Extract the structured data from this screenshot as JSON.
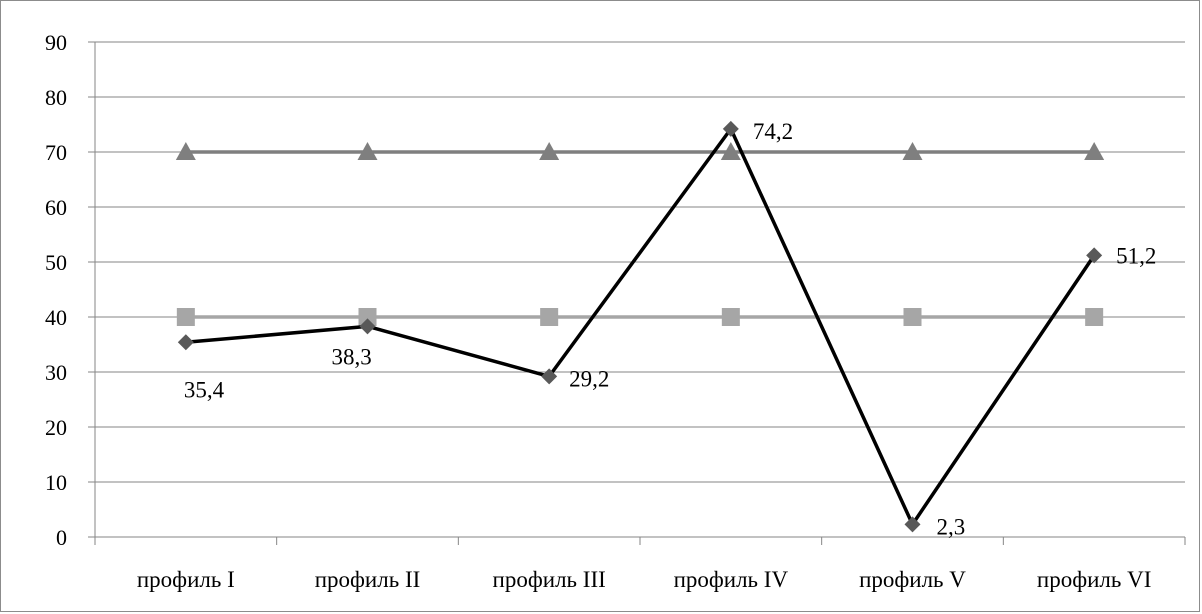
{
  "chart_data": {
    "type": "line",
    "title": "",
    "xlabel": "",
    "ylabel": "",
    "ylim": [
      0,
      90
    ],
    "yticks": [
      0,
      10,
      20,
      30,
      40,
      50,
      60,
      70,
      80,
      90
    ],
    "grid": true,
    "legend": "none",
    "categories": [
      "профиль I",
      "профиль II",
      "профиль III",
      "профиль IV",
      "профиль V",
      "профиль VI"
    ],
    "series": [
      {
        "values": [
          35.4,
          38.3,
          29.2,
          74.2,
          2.3,
          51.2
        ],
        "data_labels": [
          "35,4",
          "38,3",
          "29,2",
          "74,2",
          "2,3",
          "51,2"
        ],
        "marker": "diamond",
        "color": "#000000",
        "marker_color": "#595959"
      },
      {
        "values": [
          40,
          40,
          40,
          40,
          40,
          40
        ],
        "marker": "square",
        "color": "#a6a6a6"
      },
      {
        "values": [
          70,
          70,
          70,
          70,
          70,
          70
        ],
        "marker": "triangle",
        "color": "#7f7f7f"
      }
    ]
  }
}
